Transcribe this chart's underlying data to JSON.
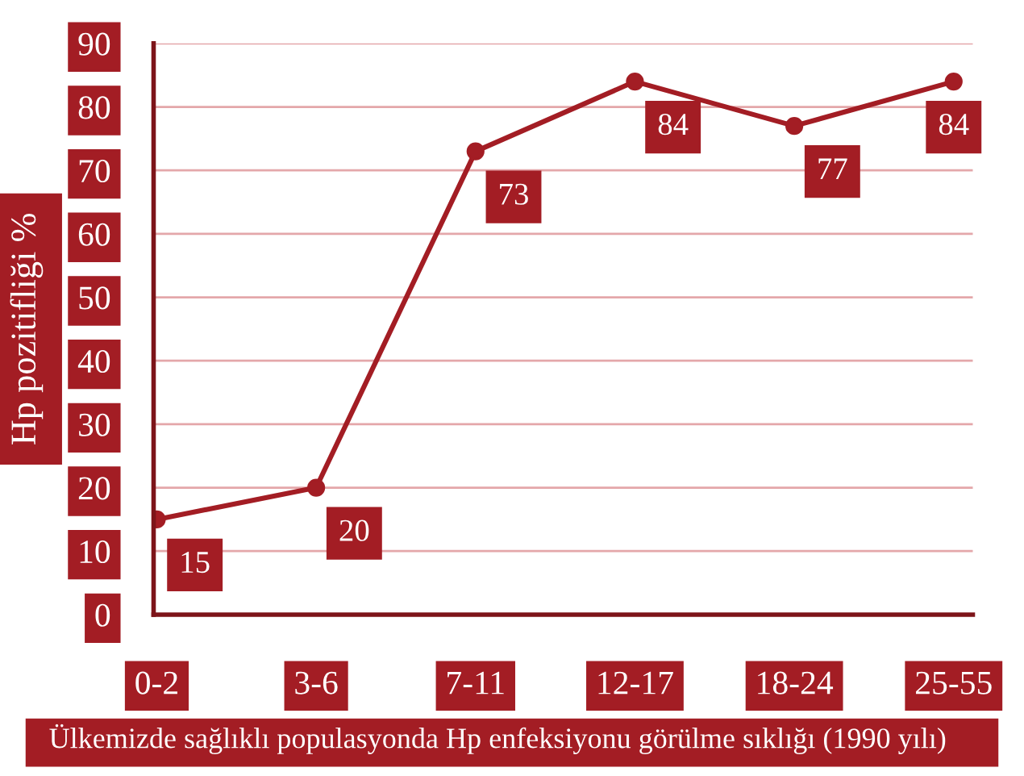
{
  "chart_data": {
    "type": "line",
    "xlabel": "Ülkemizde sağlıklı populasyonda Hp enfeksiyonu görülme sıklığı (1990 yılı)",
    "ylabel": "Hp pozitifliği %",
    "categories": [
      "0-2",
      "3-6",
      "7-11",
      "12-17",
      "18-24",
      "25-55"
    ],
    "series": [
      {
        "color": "#a31d24",
        "values": [
          15,
          20,
          73,
          84,
          77,
          84
        ]
      }
    ],
    "ylim": [
      0,
      90
    ],
    "yticks": [
      0,
      10,
      20,
      30,
      40,
      50,
      60,
      70,
      80,
      90
    ],
    "grid": "y",
    "marker": "circle",
    "line_style": "solid",
    "data_labels": true
  }
}
